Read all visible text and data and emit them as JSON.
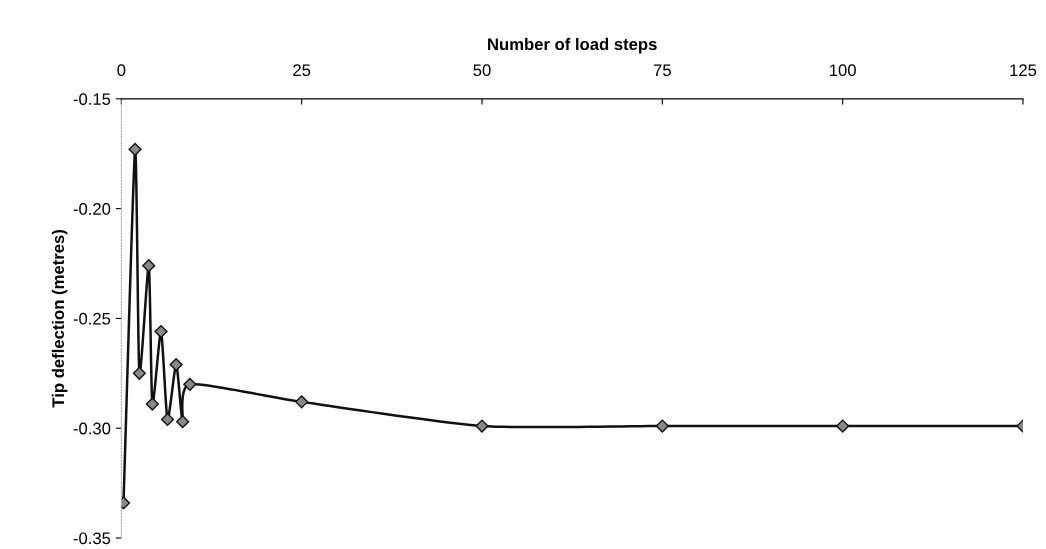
{
  "chart_data": {
    "type": "line",
    "xlabel": "Number of load steps",
    "ylabel": "Tip deflection (metres)",
    "x": [
      0.3,
      1.9,
      2.5,
      3.8,
      4.3,
      5.5,
      6.4,
      7.6,
      8.5,
      9.5,
      25,
      50,
      75,
      100,
      125
    ],
    "series": [
      {
        "color": "#111111",
        "values": [
          -0.334,
          -0.173,
          -0.275,
          -0.226,
          -0.289,
          -0.256,
          -0.296,
          -0.271,
          -0.297,
          -0.28,
          -0.288,
          -0.299,
          -0.299,
          -0.299,
          -0.299
        ]
      }
    ],
    "xlim": [
      0,
      125
    ],
    "xticks": [
      0,
      25,
      50,
      75,
      100,
      125
    ],
    "ylim": [
      -0.35,
      -0.15
    ],
    "yticks": [
      {
        "value": -0.35,
        "label": "-0.35"
      },
      {
        "value": -0.3,
        "label": "-0.30"
      },
      {
        "value": -0.25,
        "label": "-0.25"
      },
      {
        "value": -0.2,
        "label": "-0.20"
      },
      {
        "value": -0.15,
        "label": "-0.15"
      }
    ],
    "marker": "diamond",
    "line_style": "solid",
    "grid": false,
    "legend": false
  }
}
